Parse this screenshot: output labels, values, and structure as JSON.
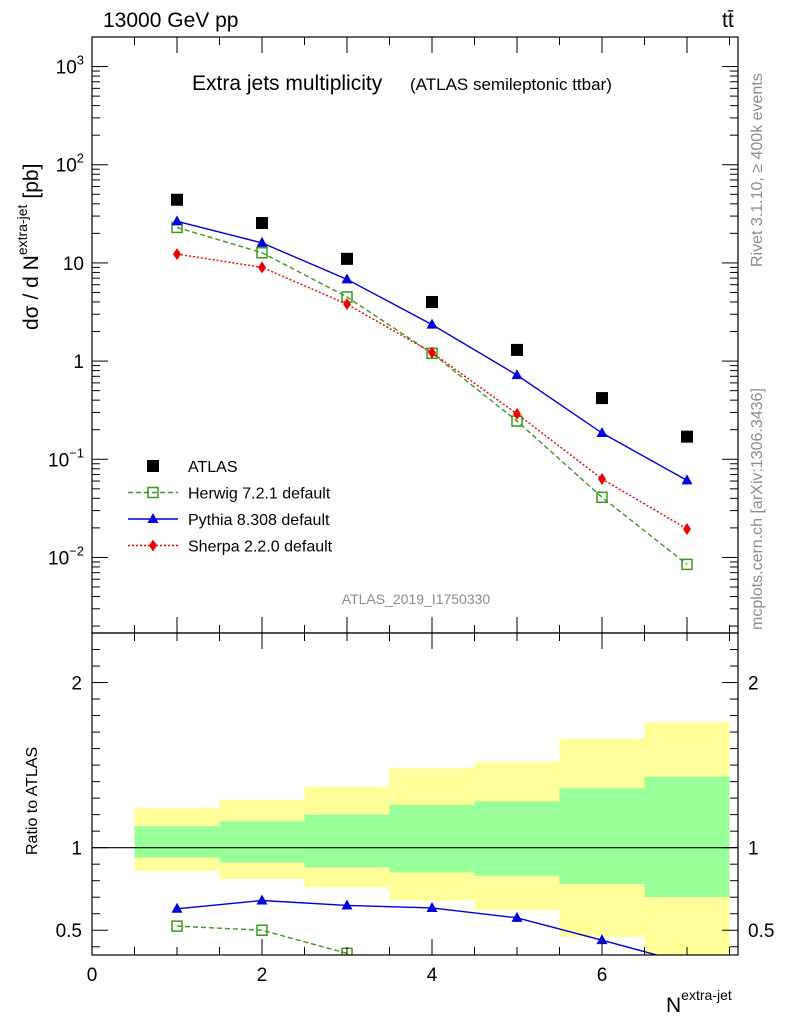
{
  "header": {
    "energy_label": "13000 GeV pp",
    "process_label": "tt̄"
  },
  "side_labels": {
    "rivet": "Rivet 3.1.10, ≥ 400k events",
    "mcplots": "mcplots.cern.ch [arXiv:1306.3436]"
  },
  "chart_data": [
    {
      "type": "scatter",
      "title": "Extra jets multiplicity",
      "subtitle": "(ATLAS semileptonic ttbar)",
      "watermark": "ATLAS_2019_I1750330",
      "ylabel": "dσ / d N^extra-jet [pb]",
      "ylabel_main": "dσ / d N",
      "ylabel_sup": "extra-jet",
      "ylabel_unit": "[pb]",
      "yscale": "log",
      "ylim": [
        0.0017,
        2000
      ],
      "xlim": [
        0,
        7.6
      ],
      "y_tick_labels": [
        "10^3",
        "10^2",
        "10",
        "1",
        "10^-1",
        "10^-2"
      ],
      "legend_placement": "lower-left",
      "x": [
        1,
        2,
        3,
        4,
        5,
        6,
        7
      ],
      "series": [
        {
          "name": "ATLAS",
          "marker": "square",
          "color": "#000000",
          "values": [
            44,
            25.5,
            11,
            4.0,
            1.3,
            0.42,
            0.17
          ]
        },
        {
          "name": "Herwig 7.2.1 default",
          "marker": "open-square",
          "line": "dashed",
          "color": "#3a9a1d",
          "values": [
            23,
            12.7,
            4.5,
            1.2,
            0.245,
            0.041,
            0.0085
          ]
        },
        {
          "name": "Pythia 8.308 default",
          "marker": "triangle",
          "line": "solid",
          "color": "#0000dd",
          "values": [
            26.5,
            16,
            6.8,
            2.35,
            0.72,
            0.185,
            0.061
          ]
        },
        {
          "name": "Sherpa 2.2.0 default",
          "marker": "diamond",
          "line": "dotted",
          "color": "#ee0000",
          "values": [
            12.3,
            9.0,
            3.8,
            1.22,
            0.29,
            0.063,
            0.0195
          ]
        }
      ]
    },
    {
      "type": "line",
      "ylabel": "Ratio to ATLAS",
      "xlabel": "N^extra-jet",
      "xlabel_main": "N",
      "xlabel_sup": "extra-jet",
      "ylim": [
        0.35,
        2.3
      ],
      "xlim": [
        0,
        7.6
      ],
      "x_ticks": [
        0,
        2,
        4,
        6
      ],
      "y_ticks": [
        0.5,
        1,
        2
      ],
      "reference_line": 1,
      "bands": {
        "edges": [
          0.5,
          1.5,
          2.5,
          3.5,
          4.5,
          5.5,
          6.5,
          7.5
        ],
        "yellow_lo": [
          0.86,
          0.81,
          0.76,
          0.68,
          0.62,
          0.46,
          0.3
        ],
        "yellow_hi": [
          1.24,
          1.29,
          1.37,
          1.48,
          1.52,
          1.66,
          1.76
        ],
        "green_lo": [
          0.94,
          0.91,
          0.88,
          0.85,
          0.83,
          0.78,
          0.7
        ],
        "green_hi": [
          1.13,
          1.16,
          1.2,
          1.26,
          1.28,
          1.36,
          1.43
        ],
        "yellow_color": "#ffff99",
        "green_color": "#99ff99"
      },
      "series": [
        {
          "name": "Herwig 7.2.1 default",
          "color": "#3a9a1d",
          "values": [
            0.525,
            0.5,
            0.36
          ]
        },
        {
          "name": "Pythia 8.308 default",
          "color": "#0000dd",
          "values": [
            0.63,
            0.68,
            0.65,
            0.635,
            0.575,
            0.44,
            0.3
          ]
        }
      ]
    }
  ]
}
